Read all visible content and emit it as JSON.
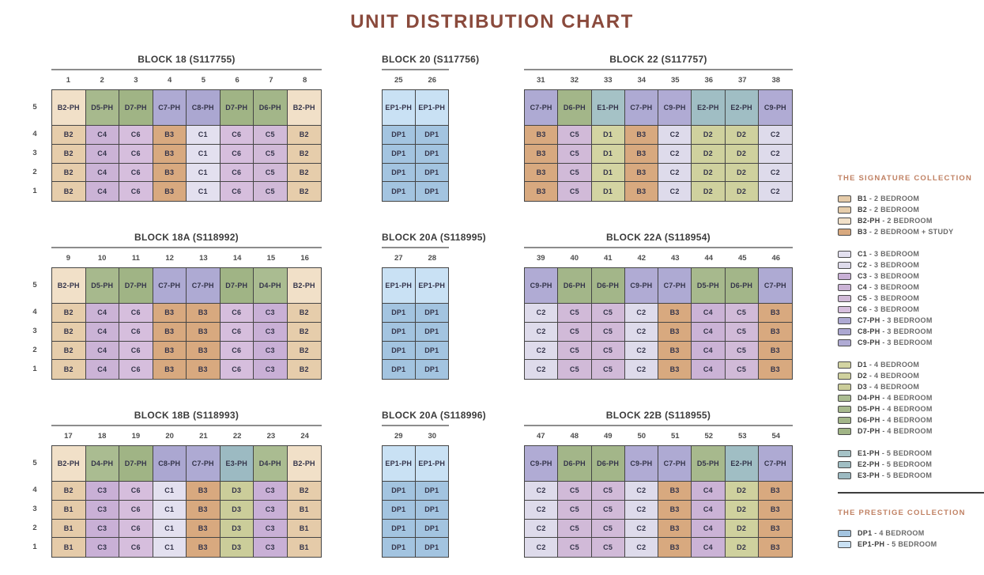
{
  "page_title": "UNIT DISTRIBUTION CHART",
  "theme": {
    "title_color": "#8a4a3c",
    "collection_title_color": "#c08163",
    "grid_border_color": "#454545",
    "header_line_color": "#8c8c8c",
    "cell_text_color": "#34344a"
  },
  "floors": [
    "5",
    "4",
    "3",
    "2",
    "1"
  ],
  "unit_colors": {
    "B1": "#e5cba9",
    "B2": "#e6cdab",
    "B2-PH": "#f1e0c8",
    "B3": "#d8a97f",
    "C1": "#e3e0ef",
    "C2": "#dedbeb",
    "C3": "#c9b0d6",
    "C4": "#cbb3d6",
    "C5": "#d1bad8",
    "C6": "#d6bedd",
    "C7-PH": "#aeaad3",
    "C8-PH": "#aba7d1",
    "C9-PH": "#b0abd4",
    "D1": "#d3d4a2",
    "D2": "#cfd19e",
    "D3": "#cbcd9a",
    "D4-PH": "#aabc91",
    "D5-PH": "#a7b98d",
    "D6-PH": "#a3b689",
    "D7-PH": "#a0b485",
    "E1-PH": "#a5c2c6",
    "E2-PH": "#a0bec4",
    "E3-PH": "#9cbac2",
    "DP1": "#a3c4e0",
    "EP1-PH": "#c9e1f4"
  },
  "blocks": [
    {
      "title": "BLOCK 18 (S117755)",
      "stacks": [
        "1",
        "2",
        "3",
        "4",
        "5",
        "6",
        "7",
        "8"
      ],
      "units": [
        [
          "B2-PH",
          "D5-PH",
          "D7-PH",
          "C7-PH",
          "C8-PH",
          "D7-PH",
          "D6-PH",
          "B2-PH"
        ],
        [
          "B2",
          "C4",
          "C6",
          "B3",
          "C1",
          "C6",
          "C5",
          "B2"
        ],
        [
          "B2",
          "C4",
          "C6",
          "B3",
          "C1",
          "C6",
          "C5",
          "B2"
        ],
        [
          "B2",
          "C4",
          "C6",
          "B3",
          "C1",
          "C6",
          "C5",
          "B2"
        ],
        [
          "B2",
          "C4",
          "C6",
          "B3",
          "C1",
          "C6",
          "C5",
          "B2"
        ]
      ]
    },
    {
      "title": "BLOCK 20 (S117756)",
      "stacks": [
        "25",
        "26"
      ],
      "units": [
        [
          "EP1-PH",
          "EP1-PH"
        ],
        [
          "DP1",
          "DP1"
        ],
        [
          "DP1",
          "DP1"
        ],
        [
          "DP1",
          "DP1"
        ],
        [
          "DP1",
          "DP1"
        ]
      ]
    },
    {
      "title": "BLOCK 22 (S117757)",
      "stacks": [
        "31",
        "32",
        "33",
        "34",
        "35",
        "36",
        "37",
        "38"
      ],
      "units": [
        [
          "C7-PH",
          "D6-PH",
          "E1-PH",
          "C7-PH",
          "C9-PH",
          "E2-PH",
          "E2-PH",
          "C9-PH"
        ],
        [
          "B3",
          "C5",
          "D1",
          "B3",
          "C2",
          "D2",
          "D2",
          "C2"
        ],
        [
          "B3",
          "C5",
          "D1",
          "B3",
          "C2",
          "D2",
          "D2",
          "C2"
        ],
        [
          "B3",
          "C5",
          "D1",
          "B3",
          "C2",
          "D2",
          "D2",
          "C2"
        ],
        [
          "B3",
          "C5",
          "D1",
          "B3",
          "C2",
          "D2",
          "D2",
          "C2"
        ]
      ]
    },
    {
      "title": "BLOCK 18A (S118992)",
      "stacks": [
        "9",
        "10",
        "11",
        "12",
        "13",
        "14",
        "15",
        "16"
      ],
      "units": [
        [
          "B2-PH",
          "D5-PH",
          "D7-PH",
          "C7-PH",
          "C7-PH",
          "D7-PH",
          "D4-PH",
          "B2-PH"
        ],
        [
          "B2",
          "C4",
          "C6",
          "B3",
          "B3",
          "C6",
          "C3",
          "B2"
        ],
        [
          "B2",
          "C4",
          "C6",
          "B3",
          "B3",
          "C6",
          "C3",
          "B2"
        ],
        [
          "B2",
          "C4",
          "C6",
          "B3",
          "B3",
          "C6",
          "C3",
          "B2"
        ],
        [
          "B2",
          "C4",
          "C6",
          "B3",
          "B3",
          "C6",
          "C3",
          "B2"
        ]
      ]
    },
    {
      "title": "BLOCK 20A (S118995)",
      "stacks": [
        "27",
        "28"
      ],
      "units": [
        [
          "EP1-PH",
          "EP1-PH"
        ],
        [
          "DP1",
          "DP1"
        ],
        [
          "DP1",
          "DP1"
        ],
        [
          "DP1",
          "DP1"
        ],
        [
          "DP1",
          "DP1"
        ]
      ]
    },
    {
      "title": "BLOCK 22A (S118954)",
      "stacks": [
        "39",
        "40",
        "41",
        "42",
        "43",
        "44",
        "45",
        "46"
      ],
      "units": [
        [
          "C9-PH",
          "D6-PH",
          "D6-PH",
          "C9-PH",
          "C7-PH",
          "D5-PH",
          "D6-PH",
          "C7-PH"
        ],
        [
          "C2",
          "C5",
          "C5",
          "C2",
          "B3",
          "C4",
          "C5",
          "B3"
        ],
        [
          "C2",
          "C5",
          "C5",
          "C2",
          "B3",
          "C4",
          "C5",
          "B3"
        ],
        [
          "C2",
          "C5",
          "C5",
          "C2",
          "B3",
          "C4",
          "C5",
          "B3"
        ],
        [
          "C2",
          "C5",
          "C5",
          "C2",
          "B3",
          "C4",
          "C5",
          "B3"
        ]
      ]
    },
    {
      "title": "BLOCK 18B (S118993)",
      "stacks": [
        "17",
        "18",
        "19",
        "20",
        "21",
        "22",
        "23",
        "24"
      ],
      "units": [
        [
          "B2-PH",
          "D4-PH",
          "D7-PH",
          "C8-PH",
          "C7-PH",
          "E3-PH",
          "D4-PH",
          "B2-PH"
        ],
        [
          "B2",
          "C3",
          "C6",
          "C1",
          "B3",
          "D3",
          "C3",
          "B2"
        ],
        [
          "B1",
          "C3",
          "C6",
          "C1",
          "B3",
          "D3",
          "C3",
          "B1"
        ],
        [
          "B1",
          "C3",
          "C6",
          "C1",
          "B3",
          "D3",
          "C3",
          "B1"
        ],
        [
          "B1",
          "C3",
          "C6",
          "C1",
          "B3",
          "D3",
          "C3",
          "B1"
        ]
      ]
    },
    {
      "title": "BLOCK 20A (S118996)",
      "stacks": [
        "29",
        "30"
      ],
      "units": [
        [
          "EP1-PH",
          "EP1-PH"
        ],
        [
          "DP1",
          "DP1"
        ],
        [
          "DP1",
          "DP1"
        ],
        [
          "DP1",
          "DP1"
        ],
        [
          "DP1",
          "DP1"
        ]
      ]
    },
    {
      "title": "BLOCK 22B (S118955)",
      "stacks": [
        "47",
        "48",
        "49",
        "50",
        "51",
        "52",
        "53",
        "54"
      ],
      "units": [
        [
          "C9-PH",
          "D6-PH",
          "D6-PH",
          "C9-PH",
          "C7-PH",
          "D5-PH",
          "E2-PH",
          "C7-PH"
        ],
        [
          "C2",
          "C5",
          "C5",
          "C2",
          "B3",
          "C4",
          "D2",
          "B3"
        ],
        [
          "C2",
          "C5",
          "C5",
          "C2",
          "B3",
          "C4",
          "D2",
          "B3"
        ],
        [
          "C2",
          "C5",
          "C5",
          "C2",
          "B3",
          "C4",
          "D2",
          "B3"
        ],
        [
          "C2",
          "C5",
          "C5",
          "C2",
          "B3",
          "C4",
          "D2",
          "B3"
        ]
      ]
    }
  ],
  "legend": {
    "signature": {
      "title": "THE SIGNATURE COLLECTION",
      "groups": [
        [
          {
            "code": "B1",
            "desc": "2 BEDROOM"
          },
          {
            "code": "B2",
            "desc": "2 BEDROOM"
          },
          {
            "code": "B2-PH",
            "desc": "2 BEDROOM"
          },
          {
            "code": "B3",
            "desc": "2 BEDROOM + STUDY"
          }
        ],
        [
          {
            "code": "C1",
            "desc": "3 BEDROOM"
          },
          {
            "code": "C2",
            "desc": "3 BEDROOM"
          },
          {
            "code": "C3",
            "desc": "3 BEDROOM"
          },
          {
            "code": "C4",
            "desc": "3 BEDROOM"
          },
          {
            "code": "C5",
            "desc": "3 BEDROOM"
          },
          {
            "code": "C6",
            "desc": "3 BEDROOM"
          },
          {
            "code": "C7-PH",
            "desc": "3 BEDROOM"
          },
          {
            "code": "C8-PH",
            "desc": "3 BEDROOM"
          },
          {
            "code": "C9-PH",
            "desc": "3 BEDROOM"
          }
        ],
        [
          {
            "code": "D1",
            "desc": "4 BEDROOM"
          },
          {
            "code": "D2",
            "desc": "4 BEDROOM"
          },
          {
            "code": "D3",
            "desc": "4 BEDROOM"
          },
          {
            "code": "D4-PH",
            "desc": "4 BEDROOM"
          },
          {
            "code": "D5-PH",
            "desc": "4 BEDROOM"
          },
          {
            "code": "D6-PH",
            "desc": "4 BEDROOM"
          },
          {
            "code": "D7-PH",
            "desc": "4 BEDROOM"
          }
        ],
        [
          {
            "code": "E1-PH",
            "desc": "5 BEDROOM"
          },
          {
            "code": "E2-PH",
            "desc": "5 BEDROOM"
          },
          {
            "code": "E3-PH",
            "desc": "5 BEDROOM"
          }
        ]
      ]
    },
    "prestige": {
      "title": "THE PRESTIGE COLLECTION",
      "groups": [
        [
          {
            "code": "DP1",
            "desc": "4 BEDROOM"
          },
          {
            "code": "EP1-PH",
            "desc": "5 BEDROOM"
          }
        ]
      ]
    },
    "separator": "-"
  }
}
